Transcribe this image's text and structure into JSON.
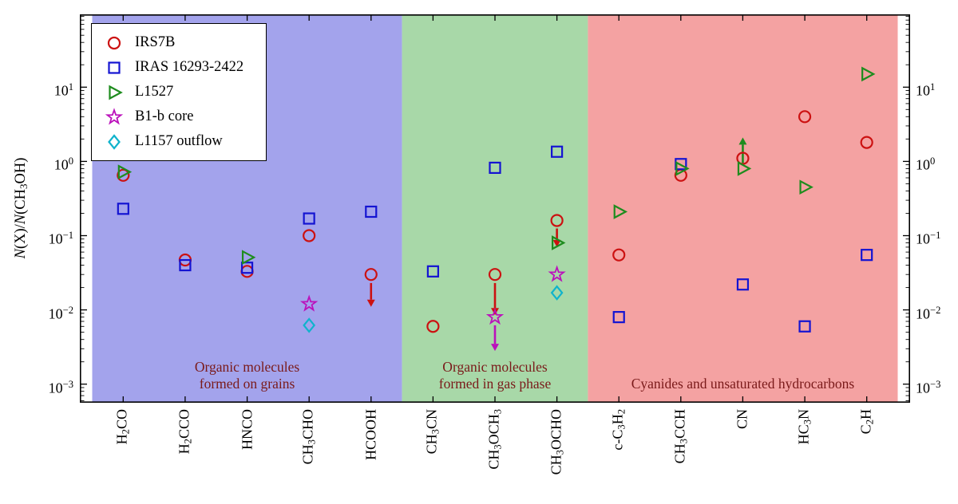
{
  "chart_data": {
    "type": "scatter",
    "title": "",
    "ylabel": "N(X)/N(CH3OH)",
    "ylabel_parts": [
      {
        "t": "N",
        "italic": true
      },
      {
        "t": "(X)/"
      },
      {
        "t": "N",
        "italic": true
      },
      {
        "t": "(CH_3OH)"
      }
    ],
    "y_scale": "log",
    "y_log_range": [
      -3.25,
      1.98
    ],
    "y_ticks": [
      {
        "log": 1,
        "label": "10^1"
      },
      {
        "log": 0,
        "label": "10^0"
      },
      {
        "log": -1,
        "label": "10^-1"
      },
      {
        "log": -2,
        "label": "10^-2"
      },
      {
        "log": -3,
        "label": "10^-3"
      }
    ],
    "x_range": [
      0.3,
      13.7
    ],
    "categories": [
      "H_2CO",
      "H_2CCO",
      "HNCO",
      "CH_3CHO",
      "HCOOH",
      "CH_3CN",
      "CH_3OCH_3",
      "CH_3OCHO",
      "c-C_3H_2",
      "CH_3CCH",
      "CN",
      "HC_3N",
      "C_2H"
    ],
    "regions": [
      {
        "x0": 0.5,
        "x1": 5.5,
        "fill": "#a3a3ec",
        "label_lines": [
          "Organic molecules",
          "formed on grains"
        ]
      },
      {
        "x0": 5.5,
        "x1": 8.5,
        "fill": "#a8d8a8",
        "label_lines": [
          "Organic molecules",
          "formed in gas phase"
        ]
      },
      {
        "x0": 8.5,
        "x1": 13.5,
        "fill": "#f4a2a2",
        "label_lines": [
          "Cyanides and unsaturated hydrocarbons"
        ]
      }
    ],
    "region_label_color": "#7a1a1a",
    "series": [
      {
        "name": "IRS7B",
        "marker": "circle",
        "color": "#cc1111",
        "values": [
          0.65,
          0.047,
          0.033,
          0.1,
          0.03,
          0.006,
          0.03,
          0.16,
          0.055,
          0.65,
          1.1,
          4.0,
          1.8
        ]
      },
      {
        "name": "IRAS 16293-2422",
        "marker": "square",
        "color": "#1414d2",
        "values": [
          0.23,
          0.04,
          0.037,
          0.17,
          0.21,
          0.033,
          0.82,
          1.35,
          0.008,
          0.92,
          0.022,
          0.006,
          0.055
        ]
      },
      {
        "name": "L1527",
        "marker": "triangle-right",
        "color": "#1e8c1e",
        "values": [
          0.72,
          null,
          0.051,
          null,
          null,
          null,
          null,
          0.08,
          0.21,
          0.8,
          0.8,
          0.45,
          15
        ]
      },
      {
        "name": "B1-b core",
        "marker": "star",
        "color": "#bb11bb",
        "values": [
          null,
          null,
          null,
          0.012,
          null,
          null,
          0.008,
          0.03,
          null,
          null,
          null,
          null,
          null
        ]
      },
      {
        "name": "L1157 outflow",
        "marker": "diamond",
        "color": "#10b3cc",
        "values": [
          null,
          null,
          null,
          0.0062,
          null,
          null,
          null,
          0.017,
          null,
          null,
          null,
          null,
          null
        ]
      }
    ],
    "limit_arrows": [
      {
        "category_index": 4,
        "color": "#cc1111",
        "from": 0.023,
        "to": 0.011,
        "direction": "down"
      },
      {
        "category_index": 6,
        "color": "#cc1111",
        "from": 0.023,
        "to": 0.0085,
        "direction": "down"
      },
      {
        "category_index": 6,
        "color": "#bb11bb",
        "from": 0.0062,
        "to": 0.0028,
        "direction": "down"
      },
      {
        "category_index": 7,
        "color": "#cc1111",
        "from": 0.125,
        "to": 0.07,
        "direction": "down"
      },
      {
        "category_index": 10,
        "color": "#1e8c1e",
        "from": 0.95,
        "to": 2.1,
        "direction": "up"
      }
    ]
  }
}
